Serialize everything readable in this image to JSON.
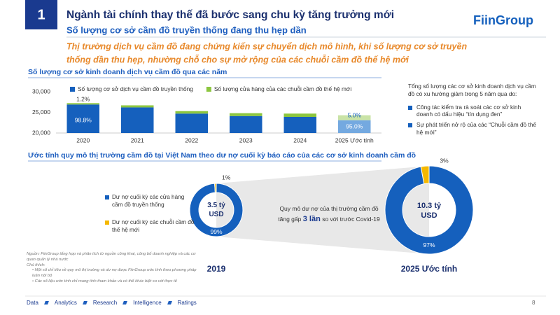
{
  "header": {
    "number": "1",
    "title": "Ngành tài chính thay thế đã bước sang chu kỳ tăng trưởng mới",
    "subtitle": "Số lượng cơ sở cầm đồ truyền thống đang thu hẹp dần",
    "highlight": [
      "Thị trường dịch vụ cầm đồ đang chứng kiến sự chuyển dịch mô hình, khi số lượng cơ sở truyền",
      "thống dần thu hẹp, nhường chỗ cho sự mở rộng của các chuỗi cầm đồ thế hệ mới"
    ],
    "logo": "FiinGroup"
  },
  "sections": [
    "Số lượng cơ sở kinh doanh dịch vụ cầm đồ qua các năm",
    "Ước tính quy mô thị trường cầm đồ tại Việt Nam theo dư nợ cuối kỳ báo cáo của các cơ sở kinh doanh cầm đồ"
  ],
  "side_note": {
    "intro": "Tổng số lượng các cơ sở kinh doanh dịch vụ cầm đồ có xu hướng giảm trong 5 năm qua do:",
    "bullets": [
      "Công tác kiểm tra rà soát các cơ sở kinh doanh có dấu hiệu “tín dụng đen”",
      "Sự phát triển nở rộ của các “Chuỗi cầm đồ thế hệ mới”"
    ]
  },
  "growth_note": [
    "Quy mô dư nợ của thị trường cầm đồ",
    "tăng gấp",
    "3 lần",
    "so với trước Covid-19"
  ],
  "chart_data": [
    {
      "type": "bar",
      "categories": [
        "2020",
        "2021",
        "2022",
        "2023",
        "2024",
        "2025 Ước tính"
      ],
      "series": [
        {
          "name": "Số lượng cơ sở dịch vụ cầm đồ truyền thống",
          "color": "#1560bd",
          "colors": [
            "#1560bd",
            "#1560bd",
            "#1560bd",
            "#1560bd",
            "#1560bd",
            "#74a9e0"
          ],
          "values": [
            26900,
            26200,
            24700,
            24100,
            23900,
            23100
          ]
        },
        {
          "name": "Số lượng cửa hàng của các chuỗi cầm đồ thế hệ mới",
          "color": "#8cc63f",
          "colors": [
            "#8cc63f",
            "#8cc63f",
            "#8cc63f",
            "#8cc63f",
            "#8cc63f",
            "#c9e3a6"
          ],
          "values": [
            330,
            500,
            600,
            700,
            800,
            1200
          ]
        }
      ],
      "data_labels": [
        "98.8%",
        "1.2%",
        "95.0%",
        "5.0%"
      ],
      "ylim": [
        20000,
        30000
      ],
      "yticks": [
        {
          "value": 20000,
          "label": "20,000"
        },
        {
          "value": 25000,
          "label": "25,000"
        },
        {
          "value": 30000,
          "label": "30,000"
        }
      ],
      "grid": false
    },
    {
      "type": "pie",
      "title": "2019",
      "center_label": "3.5 tỷ USD",
      "categories": [
        "Dư nợ cuối kỳ các cửa hàng cầm đồ truyền thống",
        "Dư nợ cuối kỳ các chuỗi cầm đồ thế hệ mới"
      ],
      "values": [
        99,
        1
      ],
      "value_labels": [
        "99%",
        "1%"
      ],
      "colors": [
        "#1560bd",
        "#f5b800"
      ]
    },
    {
      "type": "pie",
      "title": "2025 Ước tính",
      "center_label": "10.3 tỷ USD",
      "values": [
        97,
        3
      ],
      "value_labels": [
        "97%",
        "3%"
      ],
      "colors": [
        "#1560bd",
        "#f5b800"
      ]
    }
  ],
  "source": {
    "text": "Nguồn: FiinGroup tổng hợp và phân tích từ nguồn công khai, công bố doanh nghiệp và các cơ quan quản lý nhà nước",
    "notes_title": "Chú thích:",
    "notes": [
      "Một số chỉ tiêu về quy mô thị trường và dư nợ được FiinGroup ước tính theo phương pháp luận nội bộ",
      "Các số liệu ước tính chỉ mang tính tham khảo và có thể khác biệt so với thực tế"
    ]
  },
  "footer": {
    "items": [
      "Data",
      "Analytics",
      "Research",
      "Intelligence",
      "Ratings"
    ],
    "page": "8"
  }
}
